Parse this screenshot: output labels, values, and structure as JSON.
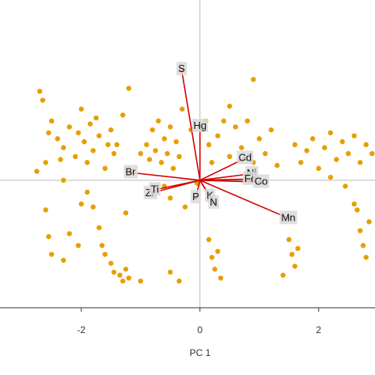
{
  "chart_data": {
    "type": "biplot",
    "x_label": "PC 1",
    "xlim": [
      -3.37,
      2.95
    ],
    "ylim": [
      -2.15,
      3.04
    ],
    "xticks": [
      -2,
      0,
      2
    ],
    "series": [
      {
        "color": "#e69f00",
        "x": [
          -2.7,
          -2.65,
          -2.55,
          -2.6,
          -2.4,
          -2.3,
          -2.2,
          -2.1,
          -2.0,
          -1.95,
          -1.9,
          -1.85,
          -1.8,
          -1.7,
          -1.6,
          -1.5,
          -1.45,
          -1.4,
          -1.3,
          -2.75,
          -2.5,
          -2.35,
          -2.05,
          -1.75,
          -1.55,
          -2.6,
          -2.0,
          -1.2,
          -1.25,
          -2.5,
          -2.3,
          -2.2,
          -2.05,
          -1.9,
          -1.8,
          -1.7,
          -1.65,
          -1.6,
          -1.5,
          -1.45,
          -1.35,
          -1.3,
          -1.25,
          -1.2,
          -2.55,
          -0.9,
          -0.85,
          -0.8,
          -0.75,
          -0.7,
          -0.65,
          -0.6,
          -0.55,
          -0.5,
          -0.45,
          -0.4,
          -0.35,
          -0.6,
          -0.5,
          -0.3,
          -0.25,
          -0.35,
          0.1,
          0.15,
          0.2,
          0.3,
          0.4,
          0.5,
          0.6,
          0.7,
          0.8,
          0.9,
          1.0,
          1.1,
          1.2,
          1.3,
          0.9,
          0.5,
          1.6,
          1.7,
          1.8,
          1.9,
          2.0,
          2.1,
          2.2,
          2.3,
          2.4,
          2.5,
          2.6,
          2.7,
          2.8,
          2.9,
          2.2,
          2.45,
          1.5,
          1.55,
          1.6,
          1.65,
          1.4,
          0.15,
          0.2,
          0.25,
          0.3,
          0.35,
          2.65,
          2.7,
          2.75,
          2.8,
          2.85,
          2.6,
          -0.15,
          -1.0,
          -0.05,
          -2.3,
          -1.0,
          -0.5
        ],
        "values": [
          1.5,
          1.35,
          0.8,
          0.3,
          0.7,
          0.55,
          0.9,
          0.4,
          1.2,
          0.65,
          0.3,
          0.95,
          0.5,
          0.75,
          0.2,
          0.85,
          0.45,
          0.6,
          1.1,
          0.15,
          1.0,
          0.35,
          0.8,
          1.05,
          0.6,
          -0.5,
          -0.4,
          1.55,
          -0.55,
          -1.25,
          -1.35,
          -0.9,
          -1.1,
          -0.2,
          -0.45,
          -0.8,
          -1.1,
          -1.25,
          -1.4,
          -1.55,
          -1.6,
          -1.7,
          -1.5,
          -1.65,
          -0.95,
          0.6,
          0.35,
          0.85,
          0.5,
          1.0,
          0.3,
          0.7,
          0.45,
          0.9,
          0.2,
          0.65,
          0.4,
          -0.1,
          -0.3,
          1.2,
          -0.45,
          -1.7,
          1.0,
          0.6,
          0.3,
          0.75,
          1.0,
          0.4,
          0.9,
          0.55,
          1.0,
          0.3,
          0.7,
          0.45,
          0.85,
          0.25,
          1.7,
          1.25,
          0.6,
          0.3,
          0.5,
          0.7,
          0.2,
          0.55,
          0.8,
          0.35,
          0.65,
          0.45,
          0.75,
          0.3,
          0.6,
          0.45,
          0.05,
          -0.1,
          -1.0,
          -1.25,
          -1.45,
          -1.15,
          -1.6,
          -1.0,
          -1.3,
          -1.5,
          -1.2,
          -1.65,
          -0.5,
          -0.85,
          -1.1,
          -1.3,
          -0.7,
          -0.4,
          0.85,
          0.45,
          -0.05,
          0.0,
          -1.7,
          -1.55
        ]
      }
    ],
    "loadings": {
      "color": "#d40000",
      "labels": [
        "S",
        "Hg",
        "Br",
        "Zr",
        "Ti",
        "P",
        "K",
        "N",
        "Cd",
        "Ni",
        "Fe",
        "Co",
        "Mn"
      ],
      "x": [
        -0.31,
        0.0,
        -1.17,
        -0.84,
        -0.76,
        -0.07,
        0.17,
        0.23,
        0.76,
        0.87,
        0.85,
        1.03,
        1.49
      ],
      "y": [
        1.87,
        0.91,
        0.13,
        -0.22,
        -0.16,
        -0.29,
        -0.27,
        -0.38,
        0.37,
        0.11,
        0.02,
        -0.03,
        -0.64
      ]
    }
  }
}
